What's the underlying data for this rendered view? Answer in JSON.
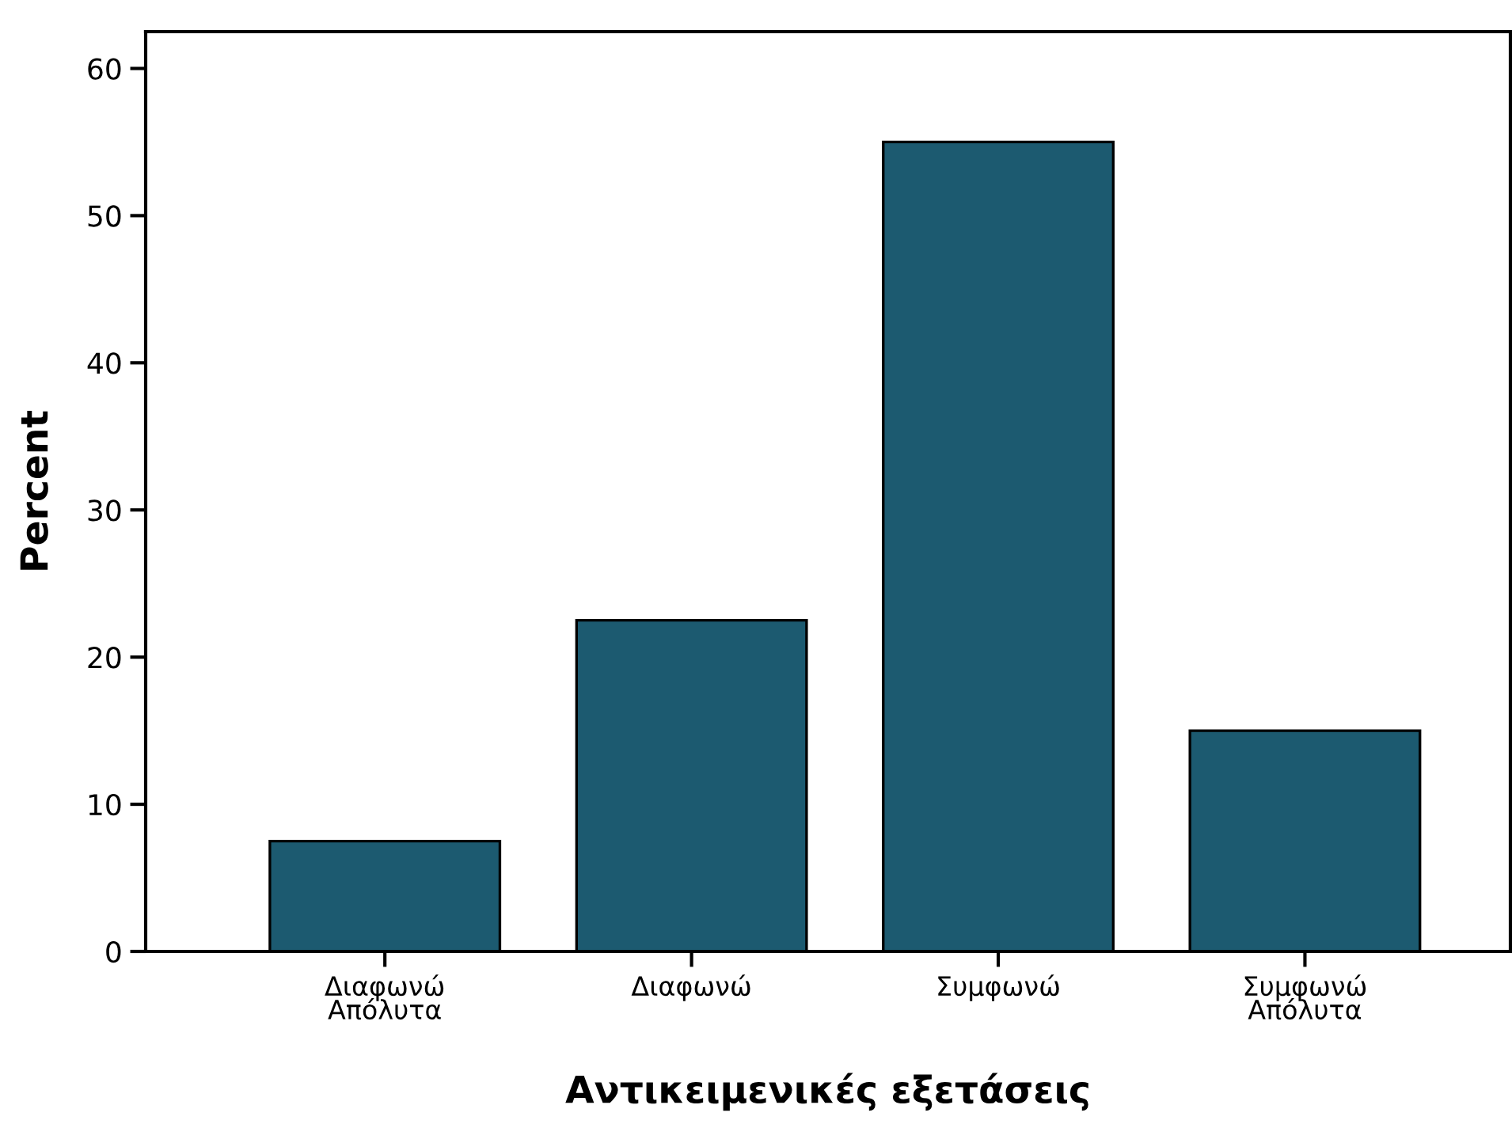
{
  "chart_data": {
    "type": "bar",
    "xlabel": "Αντικειμενικές εξετάσεις",
    "ylabel": "Percent",
    "categories": [
      "Διαφωνώ\nΑπόλυτα",
      "Διαφωνώ",
      "Συμφωνώ",
      "Συμφωνώ\nΑπόλυτα"
    ],
    "values": [
      7.5,
      22.5,
      55,
      15
    ],
    "color": "#1c5a70",
    "ylim": [
      0,
      62.5
    ],
    "yticks": [
      0,
      10,
      20,
      30,
      40,
      50,
      60
    ],
    "grid": false,
    "legend": false
  }
}
